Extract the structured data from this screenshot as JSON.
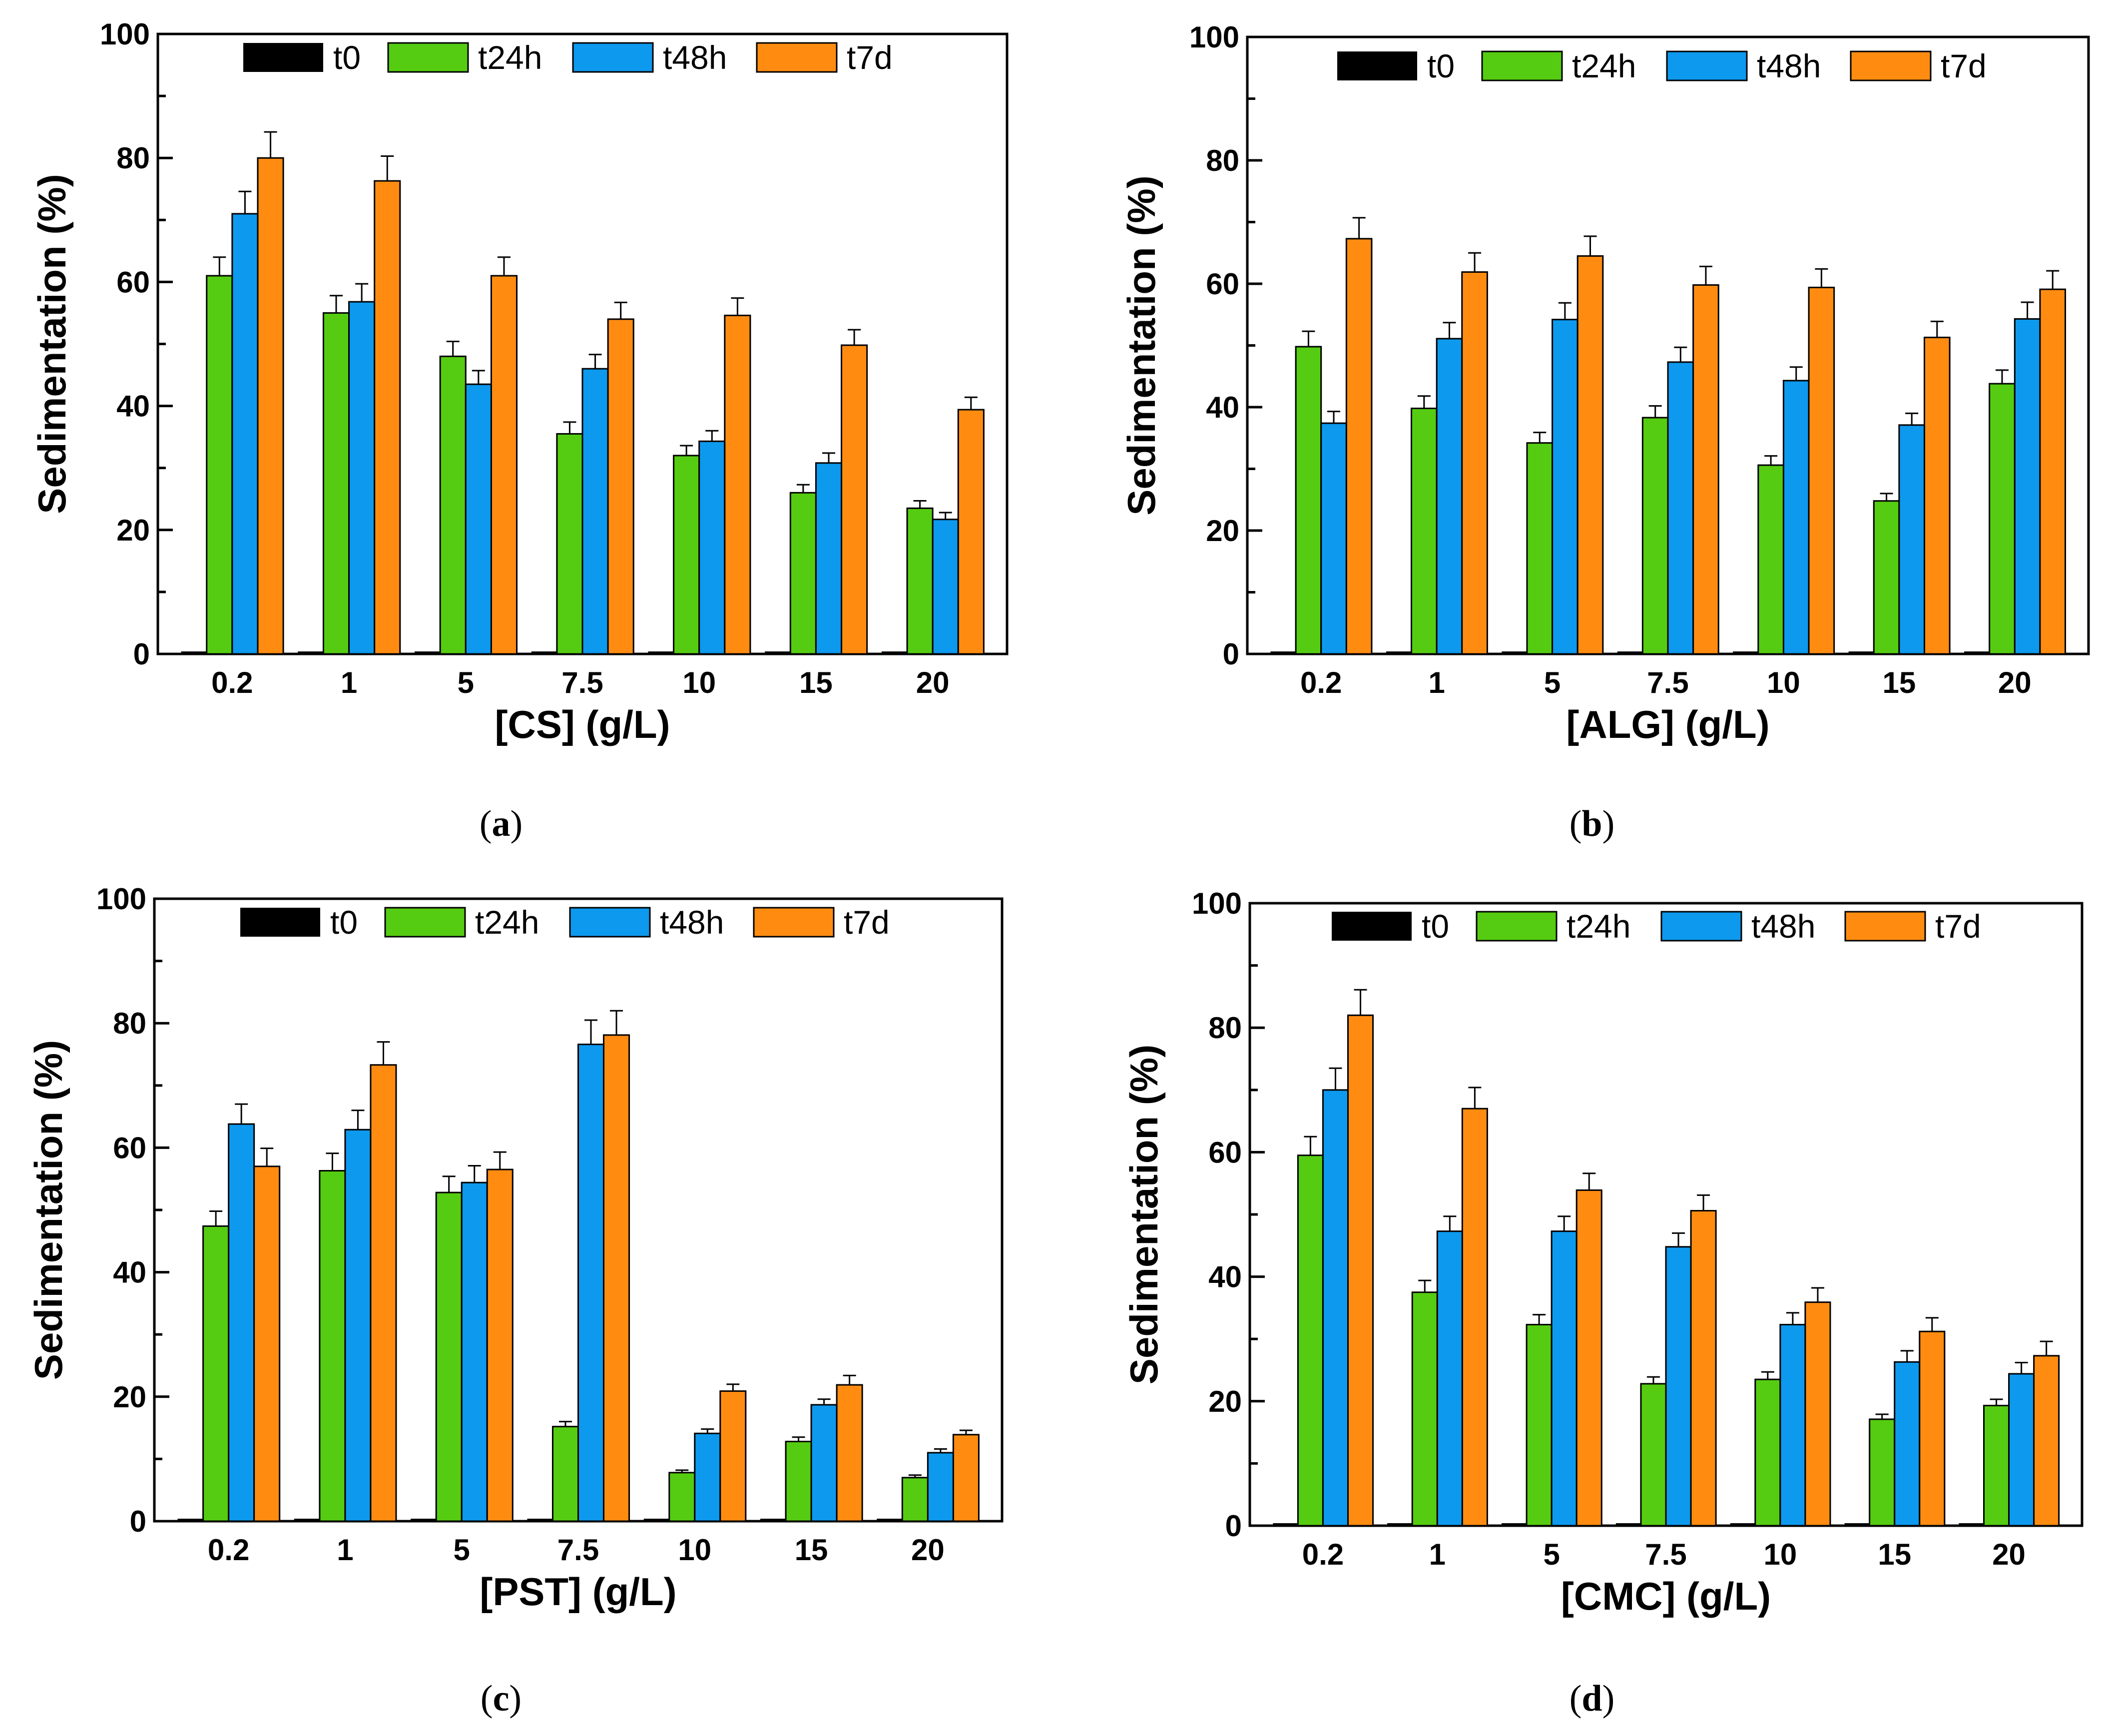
{
  "figure": {
    "colors": {
      "t0": "#000000",
      "t24h": "#55cc11",
      "t48h": "#0d99ee",
      "t7d": "#ff8c11",
      "frame": "#000000",
      "background": "#ffffff"
    }
  },
  "chart_data": [
    {
      "panel": "a",
      "caption_letter": "a",
      "type": "bar",
      "title": "",
      "xlabel": "[CS] (g/L)",
      "ylabel": "Sedimentation (%)",
      "ylim": [
        0,
        100
      ],
      "yticks": [
        "0",
        "20",
        "40",
        "60",
        "80",
        "100"
      ],
      "legend_position": "top-center",
      "categories": [
        "0.2",
        "1",
        "5",
        "7.5",
        "10",
        "15",
        "20"
      ],
      "series": [
        {
          "name": "t0",
          "values": [
            0,
            0,
            0,
            0,
            0,
            0,
            0
          ],
          "errors": [
            0,
            0,
            0,
            0,
            0,
            0,
            0
          ]
        },
        {
          "name": "t24h",
          "values": [
            61,
            55,
            48,
            35.5,
            32,
            26,
            23.5
          ],
          "errors": [
            3,
            2.8,
            2.4,
            1.9,
            1.6,
            1.3,
            1.2
          ]
        },
        {
          "name": "t48h",
          "values": [
            71,
            56.8,
            43.5,
            46,
            34.3,
            30.8,
            21.7
          ],
          "errors": [
            3.6,
            2.9,
            2.2,
            2.3,
            1.7,
            1.6,
            1.1
          ]
        },
        {
          "name": "t7d",
          "values": [
            80,
            76.3,
            61,
            54,
            54.6,
            49.8,
            39.4
          ],
          "errors": [
            4.2,
            4,
            3,
            2.7,
            2.8,
            2.5,
            2
          ]
        }
      ]
    },
    {
      "panel": "b",
      "caption_letter": "b",
      "type": "bar",
      "title": "",
      "xlabel": "[ALG] (g/L)",
      "ylabel": "Sedimentation (%)",
      "ylim": [
        0,
        100
      ],
      "yticks": [
        "0",
        "20",
        "40",
        "60",
        "80",
        "100"
      ],
      "legend_position": "top-center",
      "categories": [
        "0.2",
        "1",
        "5",
        "7.5",
        "10",
        "15",
        "20"
      ],
      "series": [
        {
          "name": "t0",
          "values": [
            0,
            0,
            0,
            0,
            0,
            0,
            0
          ],
          "errors": [
            0,
            0,
            0,
            0,
            0,
            0,
            0
          ]
        },
        {
          "name": "t24h",
          "values": [
            49.8,
            39.8,
            34.2,
            38.3,
            30.6,
            24.8,
            43.8
          ],
          "errors": [
            2.5,
            2,
            1.7,
            1.9,
            1.5,
            1.2,
            2.2
          ]
        },
        {
          "name": "t48h",
          "values": [
            37.4,
            51.1,
            54.2,
            47.3,
            44.3,
            37.1,
            54.3
          ],
          "errors": [
            1.9,
            2.6,
            2.7,
            2.4,
            2.2,
            1.9,
            2.7
          ]
        },
        {
          "name": "t7d",
          "values": [
            67.3,
            61.9,
            64.5,
            59.8,
            59.4,
            51.3,
            59.1
          ],
          "errors": [
            3.4,
            3.1,
            3.2,
            3,
            3,
            2.6,
            3
          ]
        }
      ]
    },
    {
      "panel": "c",
      "caption_letter": "c",
      "type": "bar",
      "title": "",
      "xlabel": "[PST] (g/L)",
      "ylabel": "Sedimentation (%)",
      "ylim": [
        0,
        100
      ],
      "yticks": [
        "0",
        "20",
        "40",
        "60",
        "80",
        "100"
      ],
      "legend_position": "top-center",
      "categories": [
        "0.2",
        "1",
        "5",
        "7.5",
        "10",
        "15",
        "20"
      ],
      "series": [
        {
          "name": "t0",
          "values": [
            0,
            0,
            0,
            0,
            0,
            0,
            0
          ],
          "errors": [
            0,
            0,
            0,
            0,
            0,
            0,
            0
          ]
        },
        {
          "name": "t24h",
          "values": [
            47.4,
            56.3,
            52.8,
            15.2,
            7.8,
            12.8,
            7
          ],
          "errors": [
            2.4,
            2.8,
            2.6,
            0.8,
            0.4,
            0.7,
            0.4
          ]
        },
        {
          "name": "t48h",
          "values": [
            63.8,
            62.9,
            54.4,
            76.6,
            14.1,
            18.7,
            11
          ],
          "errors": [
            3.2,
            3.1,
            2.7,
            3.9,
            0.7,
            0.9,
            0.6
          ]
        },
        {
          "name": "t7d",
          "values": [
            57,
            73.3,
            56.5,
            78.1,
            20.9,
            21.9,
            13.9
          ],
          "errors": [
            2.9,
            3.7,
            2.8,
            3.9,
            1.1,
            1.5,
            0.7
          ]
        }
      ]
    },
    {
      "panel": "d",
      "caption_letter": "d",
      "type": "bar",
      "title": "",
      "xlabel": "[CMC] (g/L)",
      "ylabel": "Sedimentation (%)",
      "ylim": [
        0,
        100
      ],
      "yticks": [
        "0",
        "20",
        "40",
        "60",
        "80",
        "100"
      ],
      "legend_position": "top-center",
      "categories": [
        "0.2",
        "1",
        "5",
        "7.5",
        "10",
        "15",
        "20"
      ],
      "series": [
        {
          "name": "t0",
          "values": [
            0,
            0,
            0,
            0,
            0,
            0,
            0
          ],
          "errors": [
            0,
            0,
            0,
            0,
            0,
            0,
            0
          ]
        },
        {
          "name": "t24h",
          "values": [
            59.5,
            37.5,
            32.3,
            22.8,
            23.5,
            17.1,
            19.3
          ],
          "errors": [
            3,
            1.9,
            1.6,
            1.1,
            1.2,
            0.8,
            1
          ]
        },
        {
          "name": "t48h",
          "values": [
            70,
            47.3,
            47.3,
            44.8,
            32.3,
            26.3,
            24.4
          ],
          "errors": [
            3.5,
            2.4,
            2.4,
            2.2,
            1.9,
            1.8,
            1.8
          ]
        },
        {
          "name": "t7d",
          "values": [
            82,
            67,
            53.9,
            50.6,
            35.9,
            31.2,
            27.3
          ],
          "errors": [
            4.1,
            3.4,
            2.7,
            2.5,
            2.3,
            2.2,
            2.3
          ]
        }
      ]
    }
  ]
}
